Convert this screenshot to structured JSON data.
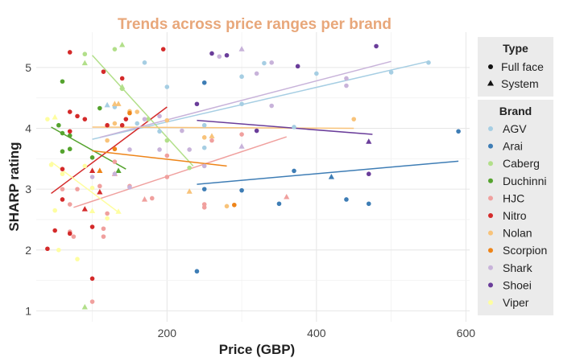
{
  "chart_data": {
    "type": "scatter",
    "title": "Trends across price ranges per brand",
    "title_color": "#E8A77A",
    "xlabel": "Price (GBP)",
    "ylabel": "SHARP rating",
    "xlim": [
      25,
      605
    ],
    "ylim": [
      0.82,
      5.58
    ],
    "x_ticks": [
      200,
      400,
      600
    ],
    "y_ticks": [
      1,
      2,
      3,
      4,
      5
    ],
    "grid": true,
    "legend_placement": "right",
    "type_legend": {
      "title": "Type",
      "items": [
        {
          "label": "Full face",
          "shape": "circle"
        },
        {
          "label": "System",
          "shape": "triangle"
        }
      ]
    },
    "brand_legend": {
      "title": "Brand",
      "items": [
        {
          "name": "AGV",
          "color": "#A6CEE3"
        },
        {
          "name": "Arai",
          "color": "#3E7DB5"
        },
        {
          "name": "Caberg",
          "color": "#B2DF8A"
        },
        {
          "name": "Duchinni",
          "color": "#55A32E"
        },
        {
          "name": "HJC",
          "color": "#F0A09E"
        },
        {
          "name": "Nitro",
          "color": "#D42A2A"
        },
        {
          "name": "Nolan",
          "color": "#F8C37A"
        },
        {
          "name": "Scorpion",
          "color": "#EE8418"
        },
        {
          "name": "Shark",
          "color": "#C8B3DA"
        },
        {
          "name": "Shoei",
          "color": "#6A3D9A"
        },
        {
          "name": "Viper",
          "color": "#FEFEA0"
        }
      ]
    },
    "trend_lines": [
      {
        "brand": "AGV",
        "x": [
          100,
          550
        ],
        "y": [
          3.82,
          5.1
        ]
      },
      {
        "brand": "Arai",
        "x": [
          240,
          590
        ],
        "y": [
          3.08,
          3.46
        ]
      },
      {
        "brand": "Caberg",
        "x": [
          100,
          235
        ],
        "y": [
          5.2,
          3.38
        ]
      },
      {
        "brand": "Duchinni",
        "x": [
          45,
          145
        ],
        "y": [
          4.02,
          3.33
        ]
      },
      {
        "brand": "HJC",
        "x": [
          75,
          360
        ],
        "y": [
          2.7,
          3.86
        ]
      },
      {
        "brand": "Nitro",
        "x": [
          45,
          200
        ],
        "y": [
          2.93,
          4.35
        ]
      },
      {
        "brand": "Nolan",
        "x": [
          100,
          450
        ],
        "y": [
          4.02,
          4.0
        ]
      },
      {
        "brand": "Scorpion",
        "x": [
          100,
          280
        ],
        "y": [
          3.63,
          3.38
        ]
      },
      {
        "brand": "Shark",
        "x": [
          110,
          500
        ],
        "y": [
          3.85,
          5.1
        ]
      },
      {
        "brand": "Shoei",
        "x": [
          240,
          475
        ],
        "y": [
          4.13,
          3.9
        ]
      },
      {
        "brand": "Viper",
        "x": [
          45,
          135
        ],
        "y": [
          3.45,
          2.62
        ]
      }
    ],
    "points": [
      {
        "brand": "AGV",
        "type": "Full face",
        "x": 170,
        "y": 5.08
      },
      {
        "brand": "AGV",
        "type": "Full face",
        "x": 200,
        "y": 4.68
      },
      {
        "brand": "AGV",
        "type": "Full face",
        "x": 300,
        "y": 4.85
      },
      {
        "brand": "AGV",
        "type": "Full face",
        "x": 330,
        "y": 5.07
      },
      {
        "brand": "AGV",
        "type": "Full face",
        "x": 400,
        "y": 4.9
      },
      {
        "brand": "AGV",
        "type": "Full face",
        "x": 550,
        "y": 5.08
      },
      {
        "brand": "AGV",
        "type": "Full face",
        "x": 250,
        "y": 4.05
      },
      {
        "brand": "AGV",
        "type": "Full face",
        "x": 300,
        "y": 4.4
      },
      {
        "brand": "AGV",
        "type": "Full face",
        "x": 130,
        "y": 4.35
      },
      {
        "brand": "AGV",
        "type": "Full face",
        "x": 250,
        "y": 3.68
      },
      {
        "brand": "AGV",
        "type": "Full face",
        "x": 190,
        "y": 3.95
      },
      {
        "brand": "AGV",
        "type": "Full face",
        "x": 160,
        "y": 4.08
      },
      {
        "brand": "AGV",
        "type": "Full face",
        "x": 370,
        "y": 4.02
      },
      {
        "brand": "AGV",
        "type": "Full face",
        "x": 500,
        "y": 4.92
      },
      {
        "brand": "AGV",
        "type": "System",
        "x": 120,
        "y": 4.38
      },
      {
        "brand": "Arai",
        "type": "Full face",
        "x": 240,
        "y": 1.65
      },
      {
        "brand": "Arai",
        "type": "Full face",
        "x": 250,
        "y": 3.0
      },
      {
        "brand": "Arai",
        "type": "Full face",
        "x": 250,
        "y": 4.75
      },
      {
        "brand": "Arai",
        "type": "Full face",
        "x": 300,
        "y": 2.98
      },
      {
        "brand": "Arai",
        "type": "Full face",
        "x": 350,
        "y": 2.76
      },
      {
        "brand": "Arai",
        "type": "Full face",
        "x": 370,
        "y": 3.3
      },
      {
        "brand": "Arai",
        "type": "Full face",
        "x": 440,
        "y": 2.83
      },
      {
        "brand": "Arai",
        "type": "Full face",
        "x": 470,
        "y": 2.76
      },
      {
        "brand": "Arai",
        "type": "Full face",
        "x": 590,
        "y": 3.95
      },
      {
        "brand": "Arai",
        "type": "System",
        "x": 420,
        "y": 3.2
      },
      {
        "brand": "Caberg",
        "type": "Full face",
        "x": 90,
        "y": 5.22
      },
      {
        "brand": "Caberg",
        "type": "Full face",
        "x": 130,
        "y": 5.3
      },
      {
        "brand": "Caberg",
        "type": "Full face",
        "x": 140,
        "y": 4.65
      },
      {
        "brand": "Caberg",
        "type": "Full face",
        "x": 175,
        "y": 4.15
      },
      {
        "brand": "Caberg",
        "type": "Full face",
        "x": 200,
        "y": 3.8
      },
      {
        "brand": "Caberg",
        "type": "Full face",
        "x": 230,
        "y": 3.35
      },
      {
        "brand": "Caberg",
        "type": "System",
        "x": 90,
        "y": 5.07
      },
      {
        "brand": "Caberg",
        "type": "System",
        "x": 140,
        "y": 5.37
      },
      {
        "brand": "Caberg",
        "type": "System",
        "x": 140,
        "y": 4.68
      },
      {
        "brand": "Caberg",
        "type": "System",
        "x": 90,
        "y": 1.06
      },
      {
        "brand": "Duchinni",
        "type": "Full face",
        "x": 55,
        "y": 4.05
      },
      {
        "brand": "Duchinni",
        "type": "Full face",
        "x": 60,
        "y": 4.77
      },
      {
        "brand": "Duchinni",
        "type": "Full face",
        "x": 60,
        "y": 3.92
      },
      {
        "brand": "Duchinni",
        "type": "Full face",
        "x": 60,
        "y": 3.62
      },
      {
        "brand": "Duchinni",
        "type": "Full face",
        "x": 70,
        "y": 3.88
      },
      {
        "brand": "Duchinni",
        "type": "Full face",
        "x": 70,
        "y": 3.66
      },
      {
        "brand": "Duchinni",
        "type": "Full face",
        "x": 100,
        "y": 3.52
      },
      {
        "brand": "Duchinni",
        "type": "Full face",
        "x": 110,
        "y": 4.33
      },
      {
        "brand": "Duchinni",
        "type": "System",
        "x": 135,
        "y": 3.3
      },
      {
        "brand": "HJC",
        "type": "Full face",
        "x": 60,
        "y": 3.0
      },
      {
        "brand": "HJC",
        "type": "Full face",
        "x": 70,
        "y": 2.75
      },
      {
        "brand": "HJC",
        "type": "Full face",
        "x": 70,
        "y": 2.3
      },
      {
        "brand": "HJC",
        "type": "Full face",
        "x": 75,
        "y": 2.22
      },
      {
        "brand": "HJC",
        "type": "Full face",
        "x": 80,
        "y": 3.0
      },
      {
        "brand": "HJC",
        "type": "Full face",
        "x": 100,
        "y": 1.15
      },
      {
        "brand": "HJC",
        "type": "Full face",
        "x": 110,
        "y": 3.05
      },
      {
        "brand": "HJC",
        "type": "Full face",
        "x": 115,
        "y": 2.35
      },
      {
        "brand": "HJC",
        "type": "Full face",
        "x": 115,
        "y": 2.22
      },
      {
        "brand": "HJC",
        "type": "Full face",
        "x": 120,
        "y": 2.6
      },
      {
        "brand": "HJC",
        "type": "Full face",
        "x": 130,
        "y": 3.45
      },
      {
        "brand": "HJC",
        "type": "Full face",
        "x": 150,
        "y": 3.05
      },
      {
        "brand": "HJC",
        "type": "Full face",
        "x": 180,
        "y": 2.85
      },
      {
        "brand": "HJC",
        "type": "Full face",
        "x": 200,
        "y": 3.2
      },
      {
        "brand": "HJC",
        "type": "Full face",
        "x": 200,
        "y": 3.55
      },
      {
        "brand": "HJC",
        "type": "Full face",
        "x": 250,
        "y": 2.7
      },
      {
        "brand": "HJC",
        "type": "Full face",
        "x": 250,
        "y": 2.75
      },
      {
        "brand": "HJC",
        "type": "Full face",
        "x": 260,
        "y": 3.8
      },
      {
        "brand": "HJC",
        "type": "Full face",
        "x": 300,
        "y": 3.9
      },
      {
        "brand": "HJC",
        "type": "System",
        "x": 130,
        "y": 3.25
      },
      {
        "brand": "HJC",
        "type": "System",
        "x": 170,
        "y": 2.83
      },
      {
        "brand": "HJC",
        "type": "System",
        "x": 360,
        "y": 2.87
      },
      {
        "brand": "Nitro",
        "type": "Full face",
        "x": 40,
        "y": 2.02
      },
      {
        "brand": "Nitro",
        "type": "Full face",
        "x": 50,
        "y": 2.32
      },
      {
        "brand": "Nitro",
        "type": "Full face",
        "x": 60,
        "y": 3.33
      },
      {
        "brand": "Nitro",
        "type": "Full face",
        "x": 60,
        "y": 2.83
      },
      {
        "brand": "Nitro",
        "type": "Full face",
        "x": 70,
        "y": 5.25
      },
      {
        "brand": "Nitro",
        "type": "Full face",
        "x": 70,
        "y": 4.27
      },
      {
        "brand": "Nitro",
        "type": "Full face",
        "x": 70,
        "y": 3.95
      },
      {
        "brand": "Nitro",
        "type": "Full face",
        "x": 70,
        "y": 2.27
      },
      {
        "brand": "Nitro",
        "type": "Full face",
        "x": 80,
        "y": 4.2
      },
      {
        "brand": "Nitro",
        "type": "Full face",
        "x": 90,
        "y": 4.15
      },
      {
        "brand": "Nitro",
        "type": "Full face",
        "x": 100,
        "y": 2.38
      },
      {
        "brand": "Nitro",
        "type": "Full face",
        "x": 100,
        "y": 1.53
      },
      {
        "brand": "Nitro",
        "type": "Full face",
        "x": 115,
        "y": 4.93
      },
      {
        "brand": "Nitro",
        "type": "Full face",
        "x": 120,
        "y": 4.05
      },
      {
        "brand": "Nitro",
        "type": "Full face",
        "x": 140,
        "y": 4.05
      },
      {
        "brand": "Nitro",
        "type": "Full face",
        "x": 140,
        "y": 4.82
      },
      {
        "brand": "Nitro",
        "type": "Full face",
        "x": 145,
        "y": 4.15
      },
      {
        "brand": "Nitro",
        "type": "Full face",
        "x": 195,
        "y": 5.3
      },
      {
        "brand": "Nitro",
        "type": "System",
        "x": 90,
        "y": 2.67
      },
      {
        "brand": "Nitro",
        "type": "System",
        "x": 100,
        "y": 3.3
      },
      {
        "brand": "Nitro",
        "type": "System",
        "x": 110,
        "y": 2.95
      },
      {
        "brand": "Nolan",
        "type": "Full face",
        "x": 120,
        "y": 3.8
      },
      {
        "brand": "Nolan",
        "type": "Full face",
        "x": 130,
        "y": 4.08
      },
      {
        "brand": "Nolan",
        "type": "Full face",
        "x": 150,
        "y": 4.28
      },
      {
        "brand": "Nolan",
        "type": "Full face",
        "x": 160,
        "y": 4.27
      },
      {
        "brand": "Nolan",
        "type": "Full face",
        "x": 200,
        "y": 4.13
      },
      {
        "brand": "Nolan",
        "type": "Full face",
        "x": 250,
        "y": 3.85
      },
      {
        "brand": "Nolan",
        "type": "Full face",
        "x": 280,
        "y": 2.72
      },
      {
        "brand": "Nolan",
        "type": "Full face",
        "x": 450,
        "y": 4.15
      },
      {
        "brand": "Nolan",
        "type": "System",
        "x": 130,
        "y": 4.4
      },
      {
        "brand": "Nolan",
        "type": "System",
        "x": 135,
        "y": 4.4
      },
      {
        "brand": "Nolan",
        "type": "System",
        "x": 230,
        "y": 2.96
      },
      {
        "brand": "Nolan",
        "type": "System",
        "x": 260,
        "y": 3.87
      },
      {
        "brand": "Scorpion",
        "type": "Full face",
        "x": 130,
        "y": 3.66
      },
      {
        "brand": "Scorpion",
        "type": "Full face",
        "x": 150,
        "y": 4.25
      },
      {
        "brand": "Scorpion",
        "type": "Full face",
        "x": 290,
        "y": 2.74
      },
      {
        "brand": "Scorpion",
        "type": "System",
        "x": 110,
        "y": 3.3
      },
      {
        "brand": "Shark",
        "type": "Full face",
        "x": 100,
        "y": 3.2
      },
      {
        "brand": "Shark",
        "type": "Full face",
        "x": 130,
        "y": 3.25
      },
      {
        "brand": "Shark",
        "type": "Full face",
        "x": 150,
        "y": 3.65
      },
      {
        "brand": "Shark",
        "type": "Full face",
        "x": 150,
        "y": 3.03
      },
      {
        "brand": "Shark",
        "type": "Full face",
        "x": 170,
        "y": 4.15
      },
      {
        "brand": "Shark",
        "type": "Full face",
        "x": 190,
        "y": 4.2
      },
      {
        "brand": "Shark",
        "type": "Full face",
        "x": 190,
        "y": 3.65
      },
      {
        "brand": "Shark",
        "type": "Full face",
        "x": 220,
        "y": 3.96
      },
      {
        "brand": "Shark",
        "type": "Full face",
        "x": 230,
        "y": 3.65
      },
      {
        "brand": "Shark",
        "type": "Full face",
        "x": 250,
        "y": 3.38
      },
      {
        "brand": "Shark",
        "type": "Full face",
        "x": 270,
        "y": 5.18
      },
      {
        "brand": "Shark",
        "type": "Full face",
        "x": 320,
        "y": 4.9
      },
      {
        "brand": "Shark",
        "type": "Full face",
        "x": 340,
        "y": 5.08
      },
      {
        "brand": "Shark",
        "type": "Full face",
        "x": 340,
        "y": 4.37
      },
      {
        "brand": "Shark",
        "type": "Full face",
        "x": 440,
        "y": 4.7
      },
      {
        "brand": "Shark",
        "type": "Full face",
        "x": 440,
        "y": 4.82
      },
      {
        "brand": "Shark",
        "type": "System",
        "x": 300,
        "y": 5.3
      },
      {
        "brand": "Shark",
        "type": "System",
        "x": 300,
        "y": 3.7
      },
      {
        "brand": "Shoei",
        "type": "Full face",
        "x": 240,
        "y": 4.4
      },
      {
        "brand": "Shoei",
        "type": "Full face",
        "x": 260,
        "y": 5.23
      },
      {
        "brand": "Shoei",
        "type": "Full face",
        "x": 280,
        "y": 5.2
      },
      {
        "brand": "Shoei",
        "type": "Full face",
        "x": 320,
        "y": 3.96
      },
      {
        "brand": "Shoei",
        "type": "Full face",
        "x": 375,
        "y": 5.02
      },
      {
        "brand": "Shoei",
        "type": "Full face",
        "x": 470,
        "y": 3.25
      },
      {
        "brand": "Shoei",
        "type": "Full face",
        "x": 480,
        "y": 5.35
      },
      {
        "brand": "Shoei",
        "type": "System",
        "x": 470,
        "y": 3.78
      },
      {
        "brand": "Viper",
        "type": "Full face",
        "x": 40,
        "y": 4.15
      },
      {
        "brand": "Viper",
        "type": "Full face",
        "x": 45,
        "y": 3.4
      },
      {
        "brand": "Viper",
        "type": "Full face",
        "x": 50,
        "y": 2.65
      },
      {
        "brand": "Viper",
        "type": "Full face",
        "x": 55,
        "y": 2.0
      },
      {
        "brand": "Viper",
        "type": "Full face",
        "x": 60,
        "y": 3.25
      },
      {
        "brand": "Viper",
        "type": "Full face",
        "x": 80,
        "y": 1.85
      },
      {
        "brand": "Viper",
        "type": "Full face",
        "x": 90,
        "y": 3.38
      },
      {
        "brand": "Viper",
        "type": "Full face",
        "x": 100,
        "y": 3.02
      },
      {
        "brand": "Viper",
        "type": "Full face",
        "x": 120,
        "y": 2.52
      },
      {
        "brand": "Viper",
        "type": "System",
        "x": 50,
        "y": 4.18
      },
      {
        "brand": "Viper",
        "type": "System",
        "x": 100,
        "y": 2.64
      },
      {
        "brand": "Viper",
        "type": "System",
        "x": 135,
        "y": 2.63
      }
    ]
  }
}
